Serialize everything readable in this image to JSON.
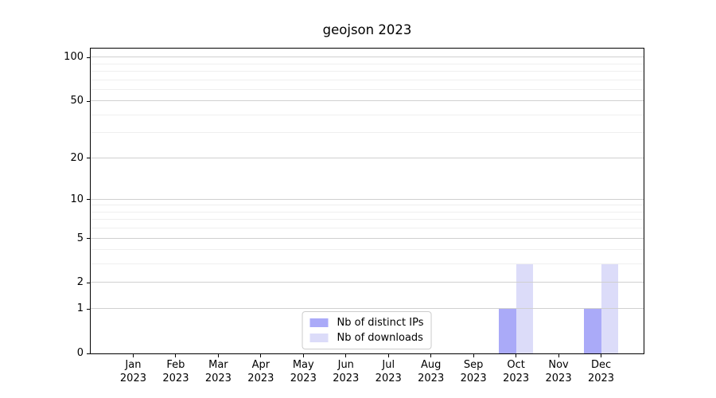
{
  "title": "geojson 2023",
  "legend": {
    "position": "lower center",
    "items": [
      {
        "label": "Nb of distinct IPs",
        "color": "#aaaaf8"
      },
      {
        "label": "Nb of downloads",
        "color": "#dcdcf9"
      }
    ]
  },
  "chart_data": {
    "type": "bar",
    "title": "geojson 2023",
    "categories": [
      "Jan 2023",
      "Feb 2023",
      "Mar 2023",
      "Apr 2023",
      "May 2023",
      "Jun 2023",
      "Jul 2023",
      "Aug 2023",
      "Sep 2023",
      "Oct 2023",
      "Nov 2023",
      "Dec 2023"
    ],
    "series": [
      {
        "name": "Nb of distinct IPs",
        "color": "#aaaaf8",
        "values": [
          0,
          0,
          0,
          0,
          0,
          0,
          0,
          0,
          0,
          1,
          0,
          1
        ]
      },
      {
        "name": "Nb of downloads",
        "color": "#dcdcf9",
        "values": [
          0,
          0,
          0,
          0,
          0,
          0,
          0,
          0,
          0,
          3,
          0,
          3
        ]
      }
    ],
    "xlabel": "",
    "ylabel": "",
    "yscale": "log1p",
    "ylim": [
      0,
      115
    ],
    "yticks_major": [
      0,
      1,
      2,
      5,
      10,
      20,
      50,
      100
    ],
    "yticks_minor": [
      3,
      4,
      6,
      7,
      8,
      9,
      30,
      40,
      60,
      70,
      80,
      90
    ],
    "grid": "horizontal",
    "grid_major_color": "#d0d0d0",
    "grid_minor_color": "#efefef",
    "legend_position": "lower center"
  }
}
